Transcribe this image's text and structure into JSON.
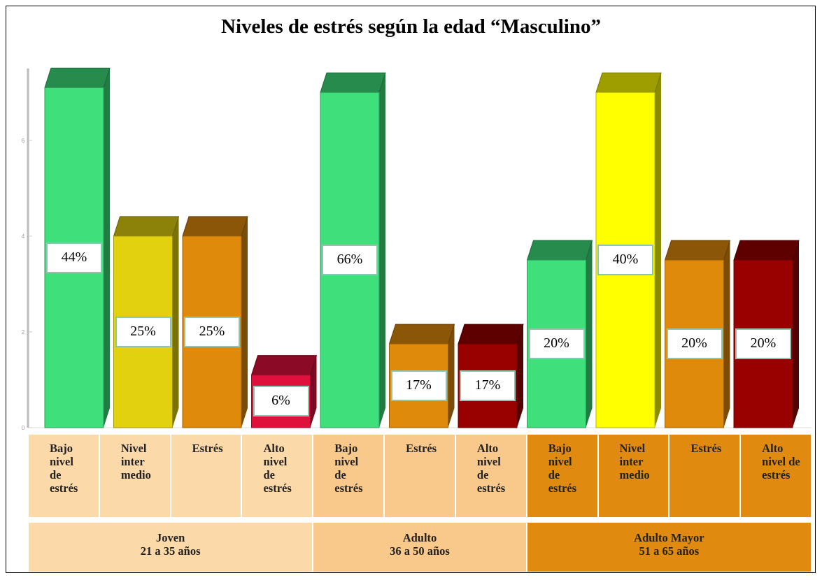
{
  "chart_data": {
    "type": "bar3d",
    "title": "Niveles de estrés según la edad “Masculino”",
    "ylim": [
      0,
      7.5
    ],
    "yticks": [
      0,
      2,
      4,
      6
    ],
    "groups": [
      {
        "label": "Joven\n21 a 35 años",
        "color": "#fcd9a9",
        "categories": [
          "Bajo\nnivel\nde\nestrés",
          "Nivel\ninter\nmedio",
          "Estrés",
          "Alto\nnivel\nde\nestrés"
        ],
        "values": [
          7.1,
          4,
          4,
          1.1
        ],
        "percent_labels": [
          "44%",
          "25%",
          "25%",
          "6%"
        ],
        "colors": [
          "#3fe07c",
          "#e2d10f",
          "#e08a0c",
          "#e0103c"
        ]
      },
      {
        "label": "Adulto\n36 a 50 años",
        "color": "#f9c88b",
        "categories": [
          "Bajo\nnivel\nde\nestrés",
          "Estrés",
          "Alto\nnivel\nde\nestrés"
        ],
        "values": [
          7,
          1.75,
          1.75
        ],
        "percent_labels": [
          "66%",
          "17%",
          "17%"
        ],
        "colors": [
          "#3fe07c",
          "#e08a0c",
          "#990000"
        ]
      },
      {
        "label": "Adulto Mayor\n51 a 65 años",
        "color": "#e08a10",
        "categories": [
          "Bajo\nnivel\nde\nestrés",
          "Nivel\ninter\nmedio",
          "Estrés",
          "Alto\nnivel de\nestrés"
        ],
        "values": [
          3.5,
          7,
          3.5,
          3.5
        ],
        "percent_labels": [
          "20%",
          "40%",
          "20%",
          "20%"
        ],
        "colors": [
          "#3fe07c",
          "#ffff00",
          "#e08a0c",
          "#990000"
        ]
      }
    ]
  }
}
